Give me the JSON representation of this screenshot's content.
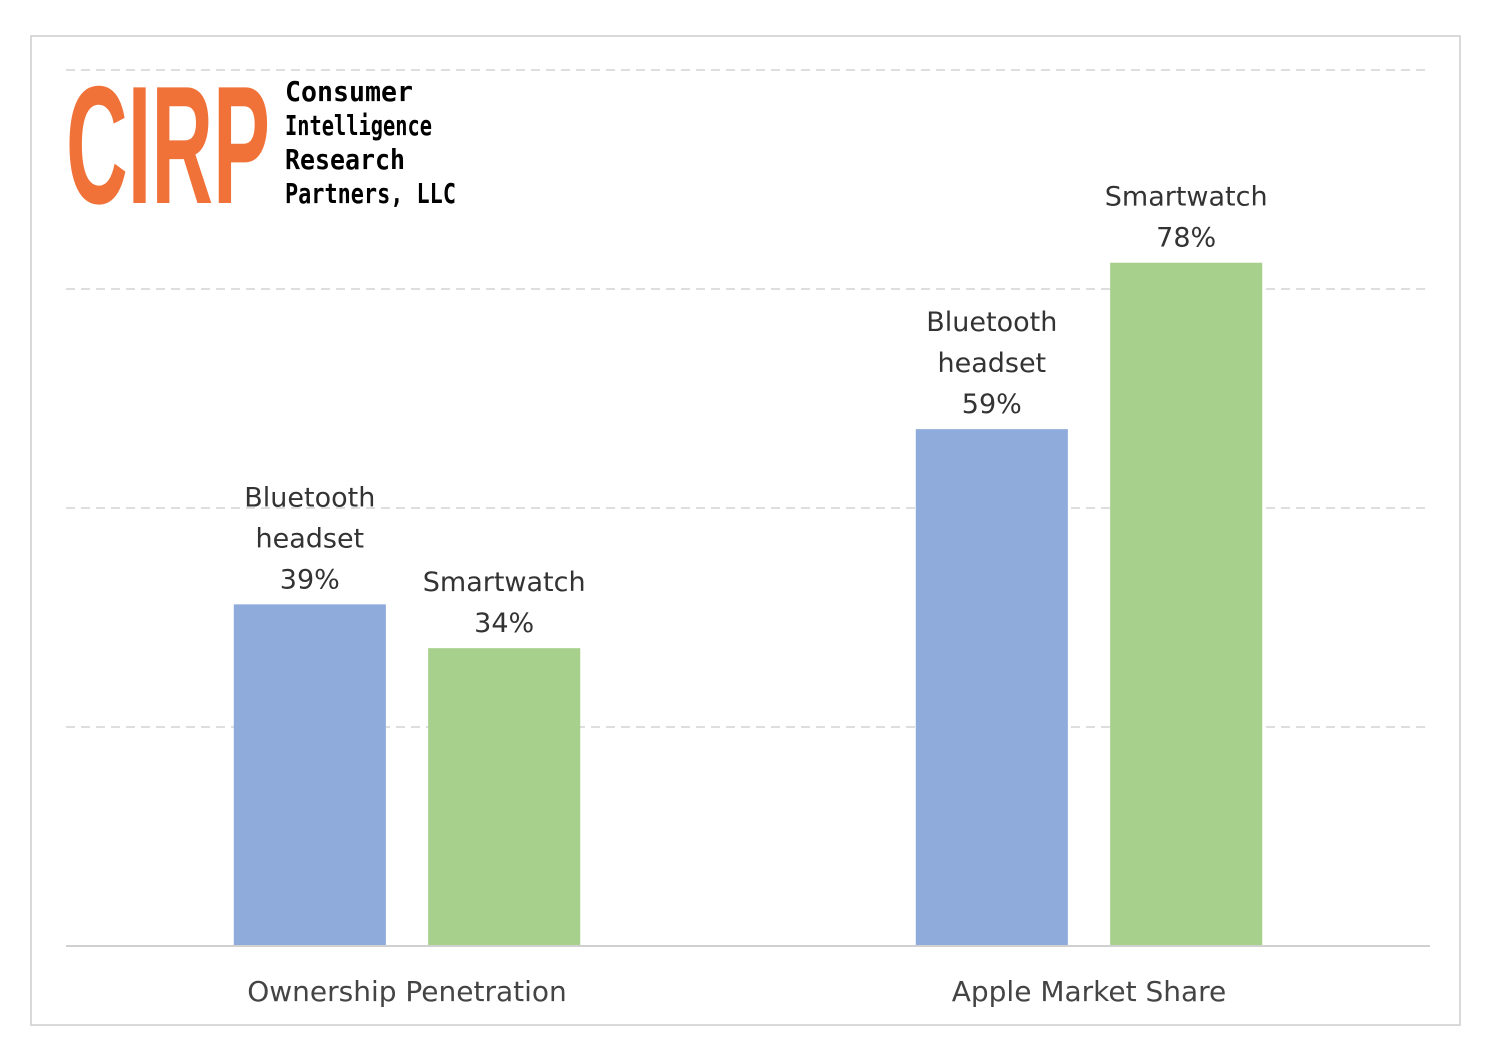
{
  "logo": {
    "mark": "CIRP",
    "lines": [
      "Consumer",
      "Intelligence",
      "Research",
      "Partners, LLC"
    ],
    "color": "#f07238"
  },
  "chart_data": {
    "type": "bar",
    "categories": [
      "Ownership Penetration",
      "Apple Market Share"
    ],
    "series": [
      {
        "name": "Bluetooth headset",
        "values": [
          39,
          59
        ],
        "color": "#8eabdb"
      },
      {
        "name": "Smartwatch",
        "values": [
          34,
          78
        ],
        "color": "#a8d08d"
      }
    ],
    "data_labels": [
      [
        [
          "Bluetooth",
          "headset",
          "39%"
        ],
        [
          "Bluetooth",
          "headset",
          "59%"
        ]
      ],
      [
        [
          "Smartwatch",
          "34%"
        ],
        [
          "Smartwatch",
          "78%"
        ]
      ]
    ],
    "ylim": [
      0,
      100
    ],
    "gridlines": [
      25,
      50,
      75,
      100
    ],
    "grid": true,
    "legend": "none",
    "title": "",
    "xlabel": "",
    "ylabel": ""
  }
}
